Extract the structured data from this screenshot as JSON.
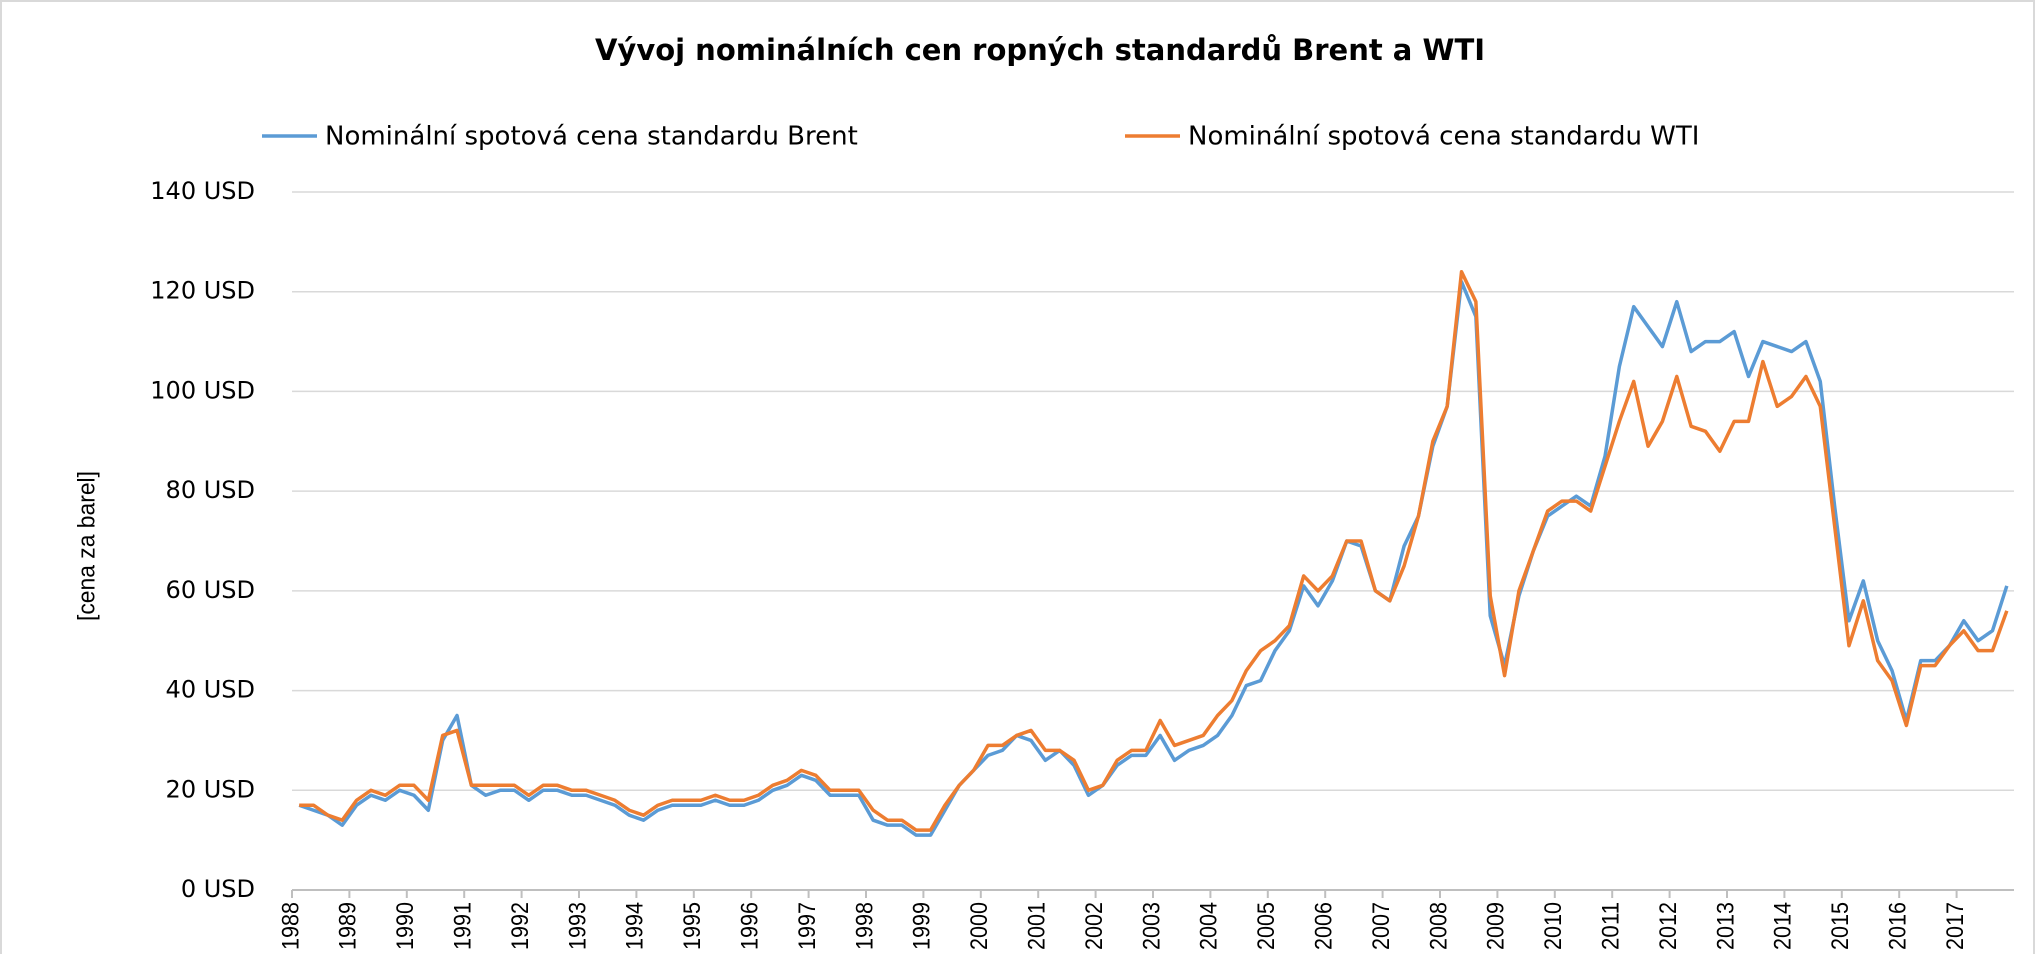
{
  "chart_data": {
    "type": "line",
    "title": "Vývoj nominálních cen ropných standardů Brent a WTI",
    "y_label": "[cena za barel]",
    "x": [
      1988.125,
      1988.375,
      1988.625,
      1988.875,
      1989.125,
      1989.375,
      1989.625,
      1989.875,
      1990.125,
      1990.375,
      1990.625,
      1990.875,
      1991.125,
      1991.375,
      1991.625,
      1991.875,
      1992.125,
      1992.375,
      1992.625,
      1992.875,
      1993.125,
      1993.375,
      1993.625,
      1993.875,
      1994.125,
      1994.375,
      1994.625,
      1994.875,
      1995.125,
      1995.375,
      1995.625,
      1995.875,
      1996.125,
      1996.375,
      1996.625,
      1996.875,
      1997.125,
      1997.375,
      1997.625,
      1997.875,
      1998.125,
      1998.375,
      1998.625,
      1998.875,
      1999.125,
      1999.375,
      1999.625,
      1999.875,
      2000.125,
      2000.375,
      2000.625,
      2000.875,
      2001.125,
      2001.375,
      2001.625,
      2001.875,
      2002.125,
      2002.375,
      2002.625,
      2002.875,
      2003.125,
      2003.375,
      2003.625,
      2003.875,
      2004.125,
      2004.375,
      2004.625,
      2004.875,
      2005.125,
      2005.375,
      2005.625,
      2005.875,
      2006.125,
      2006.375,
      2006.625,
      2006.875,
      2007.125,
      2007.375,
      2007.625,
      2007.875,
      2008.125,
      2008.375,
      2008.625,
      2008.875,
      2009.125,
      2009.375,
      2009.625,
      2009.875,
      2010.125,
      2010.375,
      2010.625,
      2010.875,
      2011.125,
      2011.375,
      2011.625,
      2011.875,
      2012.125,
      2012.375,
      2012.625,
      2012.875,
      2013.125,
      2013.375,
      2013.625,
      2013.875,
      2014.125,
      2014.375,
      2014.625,
      2014.875,
      2015.125,
      2015.375,
      2015.625,
      2015.875,
      2016.125,
      2016.375,
      2016.625,
      2016.875,
      2017.125,
      2017.375,
      2017.625,
      2017.875
    ],
    "series": [
      {
        "name": "Nominální spotová cena standardu Brent",
        "color": "#5b9bd5",
        "values": [
          17,
          16,
          15,
          13,
          17,
          19,
          18,
          20,
          19,
          16,
          30,
          35,
          21,
          19,
          20,
          20,
          18,
          20,
          20,
          19,
          19,
          18,
          17,
          15,
          14,
          16,
          17,
          17,
          17,
          18,
          17,
          17,
          18,
          20,
          21,
          23,
          22,
          19,
          19,
          19,
          14,
          13,
          13,
          11,
          11,
          16,
          21,
          24,
          27,
          28,
          31,
          30,
          26,
          28,
          25,
          19,
          21,
          25,
          27,
          27,
          31,
          26,
          28,
          29,
          31,
          35,
          41,
          42,
          48,
          52,
          61,
          57,
          62,
          70,
          69,
          60,
          58,
          69,
          75,
          89,
          97,
          122,
          115,
          55,
          45,
          59,
          68,
          75,
          77,
          79,
          77,
          87,
          105,
          117,
          113,
          109,
          118,
          108,
          110,
          110,
          112,
          103,
          110,
          109,
          108,
          110,
          102,
          77,
          54,
          62,
          50,
          44,
          34,
          46,
          46,
          49,
          54,
          50,
          52,
          61
        ]
      },
      {
        "name": "Nominální spotová cena standardu WTI",
        "color": "#ed7d31",
        "values": [
          17,
          17,
          15,
          14,
          18,
          20,
          19,
          21,
          21,
          18,
          31,
          32,
          21,
          21,
          21,
          21,
          19,
          21,
          21,
          20,
          20,
          19,
          18,
          16,
          15,
          17,
          18,
          18,
          18,
          19,
          18,
          18,
          19,
          21,
          22,
          24,
          23,
          20,
          20,
          20,
          16,
          14,
          14,
          12,
          12,
          17,
          21,
          24,
          29,
          29,
          31,
          32,
          28,
          28,
          26,
          20,
          21,
          26,
          28,
          28,
          34,
          29,
          30,
          31,
          35,
          38,
          44,
          48,
          50,
          53,
          63,
          60,
          63,
          70,
          70,
          60,
          58,
          65,
          75,
          90,
          97,
          124,
          118,
          59,
          43,
          60,
          68,
          76,
          78,
          78,
          76,
          85,
          94,
          102,
          89,
          94,
          103,
          93,
          92,
          88,
          94,
          94,
          106,
          97,
          99,
          103,
          97,
          73,
          49,
          58,
          46,
          42,
          33,
          45,
          45,
          49,
          52,
          48,
          48,
          56
        ]
      }
    ],
    "xlim": [
      1988,
      2018
    ],
    "xticks": [
      1988,
      1989,
      1990,
      1991,
      1992,
      1993,
      1994,
      1995,
      1996,
      1997,
      1998,
      1999,
      2000,
      2001,
      2002,
      2003,
      2004,
      2005,
      2006,
      2007,
      2008,
      2009,
      2010,
      2011,
      2012,
      2013,
      2014,
      2015,
      2016,
      2017
    ],
    "ylim": [
      0,
      140
    ],
    "yticks": [
      {
        "value": 0,
        "label": "0 USD"
      },
      {
        "value": 20,
        "label": "20 USD"
      },
      {
        "value": 40,
        "label": "40 USD"
      },
      {
        "value": 60,
        "label": "60 USD"
      },
      {
        "value": 80,
        "label": "80 USD"
      },
      {
        "value": 100,
        "label": "100 USD"
      },
      {
        "value": 120,
        "label": "120 USD"
      },
      {
        "value": 140,
        "label": "140 USD"
      }
    ],
    "grid": true,
    "legend": "top"
  }
}
